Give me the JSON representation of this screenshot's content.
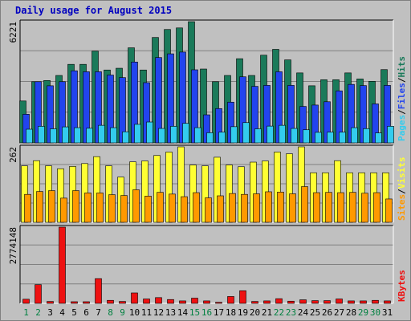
{
  "chart_data": {
    "title": "Daily usage for August 2015",
    "days": [
      "1",
      "2",
      "3",
      "4",
      "5",
      "6",
      "7",
      "8",
      "9",
      "10",
      "11",
      "12",
      "13",
      "14",
      "15",
      "16",
      "17",
      "18",
      "19",
      "20",
      "21",
      "22",
      "23",
      "24",
      "25",
      "26",
      "27",
      "28",
      "29",
      "30",
      "31"
    ],
    "weekend_days": [
      1,
      2,
      8,
      9,
      15,
      16,
      22,
      23,
      29,
      30
    ],
    "colors": {
      "hits": "#1a7a5a",
      "files": "#2244ee",
      "pages": "#33ccee",
      "visits": "#ffff33",
      "sites": "#ff9900",
      "kbytes": "#ee1111",
      "weekend": "#008040",
      "weekday": "#000000"
    },
    "panels": [
      {
        "type": "bar",
        "ymax_label": "6221",
        "ymax": 6221,
        "legend": [
          {
            "label": "Pages",
            "color": "#33ccee"
          },
          {
            "label": "/",
            "color": "#000000"
          },
          {
            "label": "Files",
            "color": "#2244ee"
          },
          {
            "label": "/",
            "color": "#000000"
          },
          {
            "label": "Hits",
            "color": "#1a7a5a"
          }
        ],
        "series": [
          {
            "key": "hits",
            "values": [
              2150,
              3140,
              3200,
              3460,
              4030,
              4030,
              4710,
              3740,
              3830,
              4880,
              3740,
              5410,
              5820,
              5900,
              6221,
              3790,
              3140,
              3460,
              4320,
              3460,
              4500,
              4800,
              4260,
              3590,
              2930,
              3240,
              3240,
              3590,
              3280,
              3160,
              3760
            ]
          },
          {
            "key": "files",
            "values": [
              1470,
              3140,
              2930,
              3140,
              3700,
              3650,
              3650,
              3480,
              3350,
              4150,
              3090,
              4380,
              4570,
              4660,
              3750,
              1440,
              1760,
              2090,
              3390,
              2900,
              2950,
              3650,
              2950,
              1870,
              1940,
              2110,
              2670,
              3000,
              2940,
              2000,
              2950
            ]
          },
          {
            "key": "pages",
            "values": [
              700,
              850,
              720,
              820,
              780,
              750,
              900,
              780,
              570,
              950,
              1070,
              740,
              850,
              1000,
              780,
              520,
              550,
              830,
              1040,
              720,
              860,
              900,
              740,
              670,
              540,
              550,
              550,
              780,
              730,
              510,
              850
            ]
          }
        ]
      },
      {
        "type": "bar",
        "ymax_label": "262",
        "ymax": 262,
        "legend": [
          {
            "label": "Sites",
            "color": "#ff9900"
          },
          {
            "label": "/",
            "color": "#000000"
          },
          {
            "label": "Visits",
            "color": "#ffff33"
          }
        ],
        "series": [
          {
            "key": "visits",
            "values": [
              196,
              214,
              196,
              186,
              194,
              204,
              228,
              196,
              157,
              210,
              213,
              232,
              244,
              262,
              199,
              196,
              226,
              199,
              193,
              209,
              213,
              244,
              238,
              262,
              172,
              172,
              214,
              172,
              172,
              172,
              172
            ]
          },
          {
            "key": "sites",
            "values": [
              97,
              107,
              110,
              84,
              110,
              102,
              102,
              96,
              93,
              113,
              91,
              104,
              98,
              89,
              103,
              85,
              92,
              100,
              97,
              99,
              106,
              105,
              99,
              124,
              103,
              104,
              103,
              104,
              101,
              103,
              81
            ]
          }
        ]
      },
      {
        "type": "bar",
        "ymax_label": "2774148",
        "ymax": 2774148,
        "legend": [
          {
            "label": "KBytes",
            "color": "#ee1111"
          }
        ],
        "series": [
          {
            "key": "kbytes",
            "values": [
              150000,
              680000,
              70000,
              2774148,
              60000,
              60000,
              900000,
              110000,
              70000,
              380000,
              160000,
              210000,
              140000,
              90000,
              190000,
              90000,
              40000,
              250000,
              460000,
              70000,
              90000,
              170000,
              80000,
              130000,
              100000,
              100000,
              160000,
              90000,
              90000,
              110000,
              90000
            ]
          }
        ]
      }
    ]
  }
}
